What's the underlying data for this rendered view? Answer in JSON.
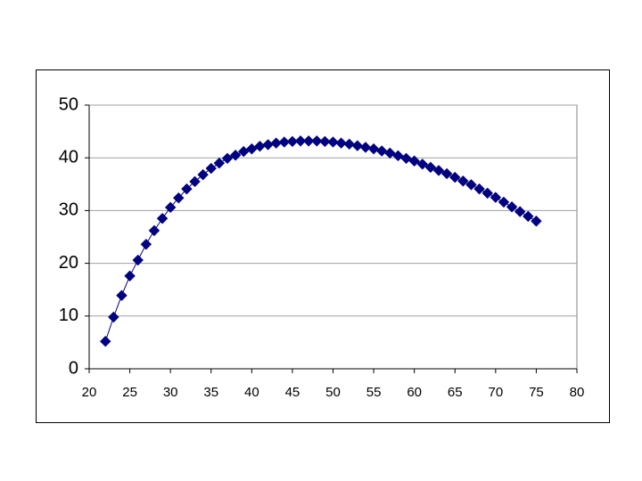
{
  "chart_data": {
    "type": "line",
    "x": [
      22,
      23,
      24,
      25,
      26,
      27,
      28,
      29,
      30,
      31,
      32,
      33,
      34,
      35,
      36,
      37,
      38,
      39,
      40,
      41,
      42,
      43,
      44,
      45,
      46,
      47,
      48,
      49,
      50,
      51,
      52,
      53,
      54,
      55,
      56,
      57,
      58,
      59,
      60,
      61,
      62,
      63,
      64,
      65,
      66,
      67,
      68,
      69,
      70,
      71,
      72,
      73,
      74,
      75
    ],
    "values": [
      5.2,
      9.8,
      13.9,
      17.6,
      20.6,
      23.6,
      26.2,
      28.5,
      30.6,
      32.4,
      34.1,
      35.5,
      36.8,
      38.0,
      39.0,
      39.9,
      40.5,
      41.2,
      41.7,
      42.2,
      42.5,
      42.8,
      43.0,
      43.1,
      43.2,
      43.2,
      43.2,
      43.1,
      43.0,
      42.8,
      42.6,
      42.3,
      42.0,
      41.7,
      41.3,
      40.9,
      40.4,
      39.9,
      39.4,
      38.8,
      38.2,
      37.6,
      37.0,
      36.3,
      35.6,
      34.9,
      34.1,
      33.3,
      32.5,
      31.6,
      30.7,
      29.8,
      28.9,
      28.0
    ],
    "color": "#000080",
    "xlim": [
      20,
      80
    ],
    "xticks": [
      20,
      25,
      30,
      35,
      40,
      45,
      50,
      55,
      60,
      65,
      70,
      75,
      80
    ],
    "ylim": [
      0,
      50
    ],
    "yticks": [
      0,
      10,
      20,
      30,
      40,
      50
    ],
    "grid": true
  }
}
